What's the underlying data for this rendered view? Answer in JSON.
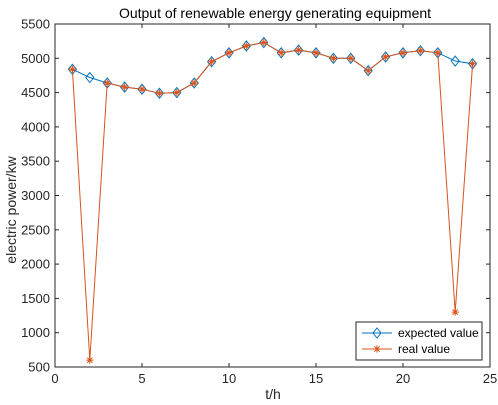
{
  "chart_data": {
    "type": "line",
    "title": "Output of renewable energy generating equipment",
    "xlabel": "t/h",
    "ylabel": "electric power/kw",
    "xlim": [
      0,
      25
    ],
    "ylim": [
      500,
      5500
    ],
    "xticks": [
      0,
      5,
      10,
      15,
      20,
      25
    ],
    "yticks": [
      500,
      1000,
      1500,
      2000,
      2500,
      3000,
      3500,
      4000,
      4500,
      5000,
      5500
    ],
    "grid": false,
    "legend_position": "bottom-right",
    "x": [
      1,
      2,
      3,
      4,
      5,
      6,
      7,
      8,
      9,
      10,
      11,
      12,
      13,
      14,
      15,
      16,
      17,
      18,
      19,
      20,
      21,
      22,
      23,
      24
    ],
    "series": [
      {
        "name": "expected value",
        "marker": "diamond",
        "color": "#0072bd",
        "values": [
          4840,
          4720,
          4640,
          4580,
          4550,
          4490,
          4500,
          4640,
          4950,
          5080,
          5180,
          5230,
          5080,
          5120,
          5080,
          5000,
          5000,
          4820,
          5020,
          5080,
          5110,
          5080,
          4960,
          4920
        ]
      },
      {
        "name": "real value",
        "marker": "asterisk",
        "color": "#d95319",
        "values": [
          4840,
          600,
          4640,
          4580,
          4550,
          4490,
          4500,
          4640,
          4950,
          5080,
          5180,
          5230,
          5080,
          5120,
          5080,
          5000,
          5000,
          4820,
          5020,
          5080,
          5110,
          5080,
          1300,
          4920
        ]
      }
    ]
  }
}
